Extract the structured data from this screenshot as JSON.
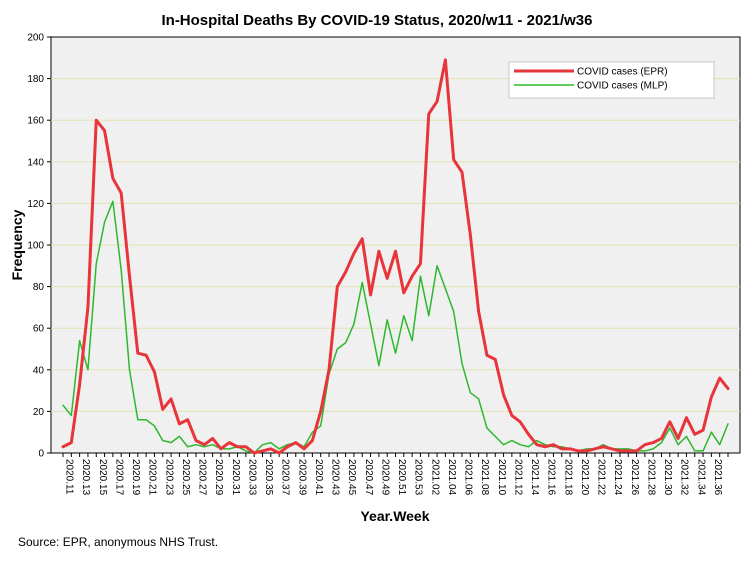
{
  "chart_data": {
    "type": "line",
    "title": "In-Hospital Deaths By COVID-19 Status, 2020/w11 - 2021/w36",
    "xlabel": "Year.Week",
    "ylabel": "Frequency",
    "ylim": [
      0,
      200
    ],
    "yticks": [
      0,
      20,
      40,
      60,
      80,
      100,
      120,
      140,
      160,
      180,
      200
    ],
    "grid": "horizontal",
    "legend_position": "top-right",
    "x_tick_labels": [
      "2020.11",
      "2020.13",
      "2020.15",
      "2020.17",
      "2020.19",
      "2020.21",
      "2020.23",
      "2020.25",
      "2020.27",
      "2020.29",
      "2020.31",
      "2020.33",
      "2020.35",
      "2020.37",
      "2020.39",
      "2020.41",
      "2020.43",
      "2020.45",
      "2020.47",
      "2020.49",
      "2020.51",
      "2020.53",
      "2021.02",
      "2021.04",
      "2021.06",
      "2021.08",
      "2021.10",
      "2021.12",
      "2021.14",
      "2021.16",
      "2021.18",
      "2021.20",
      "2021.22",
      "2021.24",
      "2021.26",
      "2021.28",
      "2021.30",
      "2021.32",
      "2021.34",
      "2021.36"
    ],
    "series": [
      {
        "name": "COVID cases (EPR)",
        "color": "#e8343b",
        "values": [
          3,
          5,
          33,
          70,
          160,
          155,
          132,
          125,
          85,
          48,
          47,
          39,
          21,
          26,
          14,
          16,
          6,
          4,
          7,
          2,
          5,
          3,
          3,
          0,
          1,
          2,
          0,
          3,
          5,
          2,
          6,
          20,
          40,
          80,
          87,
          96,
          103,
          76,
          97,
          84,
          97,
          77,
          85,
          91,
          163,
          169,
          189,
          141,
          135,
          105,
          68,
          47,
          45,
          28,
          18,
          15,
          9,
          4,
          3,
          4,
          2,
          2,
          1,
          1,
          2,
          3,
          2,
          1,
          1,
          1,
          4,
          5,
          7,
          15,
          7,
          17,
          9,
          11,
          27,
          36,
          31
        ]
      },
      {
        "name": "COVID cases (MLP)",
        "color": "#2eb82e",
        "values": [
          23,
          18,
          54,
          40,
          91,
          111,
          121,
          88,
          40,
          16,
          16,
          13,
          6,
          5,
          8,
          3,
          4,
          3,
          4,
          2,
          2,
          3,
          1,
          0,
          4,
          5,
          2,
          4,
          5,
          3,
          10,
          13,
          38,
          50,
          53,
          62,
          82,
          62,
          42,
          64,
          48,
          66,
          54,
          85,
          66,
          90,
          79,
          68,
          43,
          29,
          26,
          12,
          8,
          4,
          6,
          4,
          3,
          6,
          4,
          3,
          3,
          2,
          1,
          2,
          2,
          4,
          2,
          2,
          2,
          1,
          1,
          2,
          5,
          12,
          4,
          8,
          1,
          1,
          10,
          4,
          14
        ]
      }
    ]
  },
  "footer": {
    "source": "Source: EPR, anonymous NHS Trust."
  }
}
